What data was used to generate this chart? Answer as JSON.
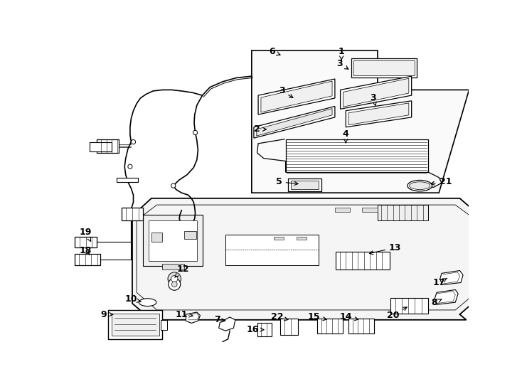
{
  "background_color": "#ffffff",
  "line_color": "#000000",
  "fig_width": 7.34,
  "fig_height": 5.4,
  "dpi": 100
}
